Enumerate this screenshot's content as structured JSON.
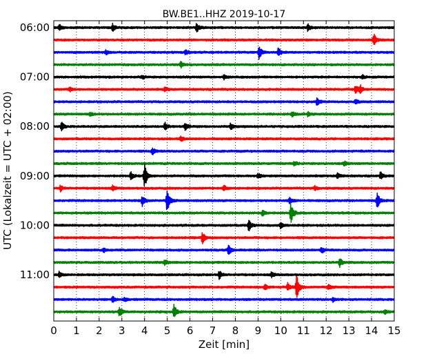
{
  "chart_data": {
    "type": "line",
    "title": "BW.BE1..HHZ 2019-10-17",
    "xlabel": "Zeit  [min]",
    "ylabel": "UTC (Lokalzeit = UTC + 02:00)",
    "xlim": [
      0,
      15
    ],
    "x_ticks": [
      0,
      1,
      2,
      3,
      4,
      5,
      6,
      7,
      8,
      9,
      10,
      11,
      12,
      13,
      14,
      15
    ],
    "x_tick_labels": [
      "0",
      "1",
      "2",
      "3",
      "4",
      "5",
      "6",
      "7",
      "8",
      "9",
      "10",
      "11",
      "12",
      "13",
      "14",
      "15"
    ],
    "y_tick_labels": [
      "06:00",
      "07:00",
      "08:00",
      "09:00",
      "10:00",
      "11:00"
    ],
    "y_tick_trace_index": [
      0,
      4,
      8,
      12,
      16,
      20
    ],
    "grid": "vertical dotted",
    "trace_colors": [
      "#000000",
      "#ff0000",
      "#0000ff",
      "#008000"
    ],
    "series": [
      {
        "start": "06:00",
        "events": [
          {
            "t": 0.25,
            "amp": 0.22
          },
          {
            "t": 2.6,
            "amp": 0.25
          },
          {
            "t": 6.3,
            "amp": 0.3
          },
          {
            "t": 11.2,
            "amp": 0.25
          }
        ]
      },
      {
        "start": "06:15",
        "events": [
          {
            "t": 14.1,
            "amp": 0.45
          }
        ]
      },
      {
        "start": "06:30",
        "events": [
          {
            "t": 2.3,
            "amp": 0.15
          },
          {
            "t": 5.8,
            "amp": 0.2
          },
          {
            "t": 9.05,
            "amp": 0.45
          },
          {
            "t": 9.9,
            "amp": 0.3
          }
        ]
      },
      {
        "start": "06:45",
        "events": [
          {
            "t": 5.6,
            "amp": 0.2
          }
        ]
      },
      {
        "start": "07:00",
        "events": [
          {
            "t": 3.9,
            "amp": 0.15
          },
          {
            "t": 7.5,
            "amp": 0.15
          },
          {
            "t": 13.6,
            "amp": 0.15
          }
        ]
      },
      {
        "start": "07:15",
        "events": [
          {
            "t": 0.7,
            "amp": 0.15
          },
          {
            "t": 4.9,
            "amp": 0.15
          },
          {
            "t": 13.3,
            "amp": 0.3
          },
          {
            "t": 13.5,
            "amp": 0.3
          }
        ]
      },
      {
        "start": "07:30",
        "events": [
          {
            "t": 11.6,
            "amp": 0.25
          },
          {
            "t": 13.3,
            "amp": 0.15
          }
        ]
      },
      {
        "start": "07:45",
        "events": [
          {
            "t": 1.6,
            "amp": 0.15
          },
          {
            "t": 10.5,
            "amp": 0.2
          },
          {
            "t": 11.2,
            "amp": 0.15
          }
        ]
      },
      {
        "start": "08:00",
        "events": [
          {
            "t": 0.35,
            "amp": 0.3
          },
          {
            "t": 4.9,
            "amp": 0.3
          },
          {
            "t": 5.8,
            "amp": 0.25
          },
          {
            "t": 7.8,
            "amp": 0.25
          }
        ]
      },
      {
        "start": "08:15",
        "events": [
          {
            "t": 5.6,
            "amp": 0.2
          }
        ]
      },
      {
        "start": "08:30",
        "events": [
          {
            "t": 4.35,
            "amp": 0.25
          }
        ]
      },
      {
        "start": "08:45",
        "events": [
          {
            "t": 10.6,
            "amp": 0.15
          },
          {
            "t": 12.8,
            "amp": 0.15
          }
        ]
      },
      {
        "start": "09:00",
        "events": [
          {
            "t": 4.0,
            "amp": 0.95
          },
          {
            "t": 3.4,
            "amp": 0.3
          },
          {
            "t": 9.0,
            "amp": 0.2
          },
          {
            "t": 12.5,
            "amp": 0.2
          },
          {
            "t": 14.4,
            "amp": 0.25
          }
        ]
      },
      {
        "start": "09:15",
        "events": [
          {
            "t": 0.3,
            "amp": 0.2
          },
          {
            "t": 2.6,
            "amp": 0.2
          },
          {
            "t": 7.5,
            "amp": 0.2
          },
          {
            "t": 11.5,
            "amp": 0.15
          }
        ]
      },
      {
        "start": "09:30",
        "events": [
          {
            "t": 3.9,
            "amp": 0.4
          },
          {
            "t": 5.0,
            "amp": 0.95
          },
          {
            "t": 10.4,
            "amp": 0.25
          },
          {
            "t": 14.25,
            "amp": 0.6
          }
        ]
      },
      {
        "start": "09:45",
        "events": [
          {
            "t": 10.45,
            "amp": 0.75
          },
          {
            "t": 9.2,
            "amp": 0.2
          }
        ]
      },
      {
        "start": "10:00",
        "events": [
          {
            "t": 8.6,
            "amp": 0.45
          },
          {
            "t": 10.0,
            "amp": 0.2
          }
        ]
      },
      {
        "start": "10:15",
        "events": [
          {
            "t": 6.55,
            "amp": 0.4
          }
        ]
      },
      {
        "start": "10:30",
        "events": [
          {
            "t": 7.7,
            "amp": 0.4
          },
          {
            "t": 11.8,
            "amp": 0.2
          },
          {
            "t": 2.2,
            "amp": 0.15
          }
        ]
      },
      {
        "start": "10:45",
        "events": [
          {
            "t": 4.9,
            "amp": 0.2
          },
          {
            "t": 12.6,
            "amp": 0.35
          }
        ]
      },
      {
        "start": "11:00",
        "events": [
          {
            "t": 0.25,
            "amp": 0.25
          },
          {
            "t": 7.3,
            "amp": 0.3
          },
          {
            "t": 9.6,
            "amp": 0.2
          }
        ]
      },
      {
        "start": "11:15",
        "events": [
          {
            "t": 10.7,
            "amp": 0.95
          },
          {
            "t": 10.3,
            "amp": 0.3
          },
          {
            "t": 9.3,
            "amp": 0.2
          },
          {
            "t": 12.1,
            "amp": 0.2
          }
        ]
      },
      {
        "start": "11:30",
        "events": [
          {
            "t": 2.6,
            "amp": 0.2
          },
          {
            "t": 3.1,
            "amp": 0.15
          },
          {
            "t": 12.3,
            "amp": 0.15
          }
        ]
      },
      {
        "start": "11:45",
        "events": [
          {
            "t": 2.9,
            "amp": 0.35
          },
          {
            "t": 5.3,
            "amp": 0.5
          },
          {
            "t": 14.6,
            "amp": 0.15
          }
        ]
      }
    ]
  }
}
